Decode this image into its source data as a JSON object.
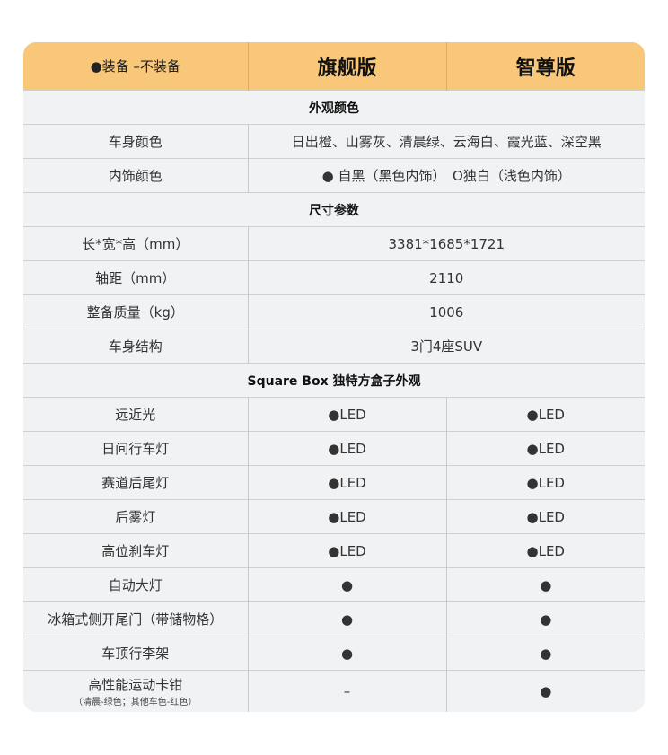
{
  "header": {
    "legend": "●装备  –不装备",
    "col1": "旗舰版",
    "col2": "智尊版"
  },
  "colors": {
    "header_bg": "#f9c77a",
    "row_bg": "#f1f2f4"
  },
  "sections": {
    "exterior_color": {
      "title": "外观颜色",
      "body_color": {
        "label": "车身颜色",
        "value": "日出橙、山雾灰、清晨绿、云海白、霞光蓝、深空黑"
      },
      "interior_color": {
        "label": "内饰颜色",
        "value": "● 自黑（黑色内饰）　O独白（浅色内饰）"
      }
    },
    "dimensions": {
      "title": "尺寸参数",
      "rows": [
        {
          "label": "长*宽*高（mm）",
          "value": "3381*1685*1721"
        },
        {
          "label": "轴距（mm）",
          "value": "2110"
        },
        {
          "label": "整备质量（kg）",
          "value": "1006"
        },
        {
          "label": "车身结构",
          "value": "3门4座SUV"
        }
      ]
    },
    "square_box": {
      "title": "Square Box 独特方盒子外观",
      "rows": [
        {
          "label": "远近光",
          "v1": "●LED",
          "v2": "●LED"
        },
        {
          "label": "日间行车灯",
          "v1": "●LED",
          "v2": "●LED"
        },
        {
          "label": "赛道后尾灯",
          "v1": "●LED",
          "v2": "●LED"
        },
        {
          "label": "后雾灯",
          "v1": "●LED",
          "v2": "●LED"
        },
        {
          "label": "高位刹车灯",
          "v1": "●LED",
          "v2": "●LED"
        },
        {
          "label": "自动大灯",
          "v1": "●",
          "v2": "●"
        },
        {
          "label": "冰箱式侧开尾门（带储物格）",
          "v1": "●",
          "v2": "●"
        },
        {
          "label": "车顶行李架",
          "v1": "●",
          "v2": "●"
        },
        {
          "label": "高性能运动卡钳",
          "note": "（清晨-绿色；其他车色-红色）",
          "v1": "–",
          "v2": "●"
        }
      ]
    }
  }
}
